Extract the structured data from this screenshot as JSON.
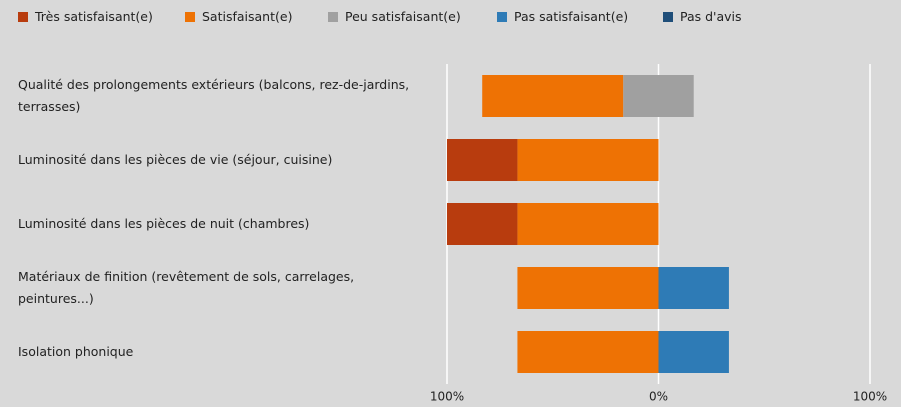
{
  "chart_data": {
    "type": "diverging_bar",
    "categories": [
      "Qualité des prolongements extérieurs (balcons, rez-de-jardins, terrasses)",
      "Luminosité dans les pièces de vie (séjour, cuisine)",
      "Luminosité dans les pièces de nuit (chambres)",
      "Matériaux de finition (revêtement de sols, carrelages, peintures...)",
      "Isolation phonique"
    ],
    "series": [
      {
        "name": "Très satisfaisant(e)",
        "color": "#b83c0e",
        "values": [
          0,
          33.3,
          33.3,
          0,
          0
        ]
      },
      {
        "name": "Satisfaisant(e)",
        "color": "#ee7204",
        "values": [
          66.7,
          66.7,
          66.7,
          66.7,
          66.7
        ]
      },
      {
        "name": "Peu satisfaisant(e)",
        "color": "#a0a0a0",
        "values": [
          33.3,
          0,
          0,
          0,
          0
        ]
      },
      {
        "name": "Pas satisfaisant(e)",
        "color": "#2e7bb6",
        "values": [
          0,
          0,
          0,
          33.3,
          33.3
        ]
      },
      {
        "name": "Pas d'avis",
        "color": "#1f4e79",
        "values": [
          0,
          0,
          0,
          0,
          0
        ]
      }
    ],
    "xlim": [
      -100,
      100
    ],
    "xticks": [
      {
        "value": -100,
        "label": "100%"
      },
      {
        "value": 0,
        "label": "0%"
      },
      {
        "value": 100,
        "label": "100%"
      }
    ],
    "grid": true
  }
}
